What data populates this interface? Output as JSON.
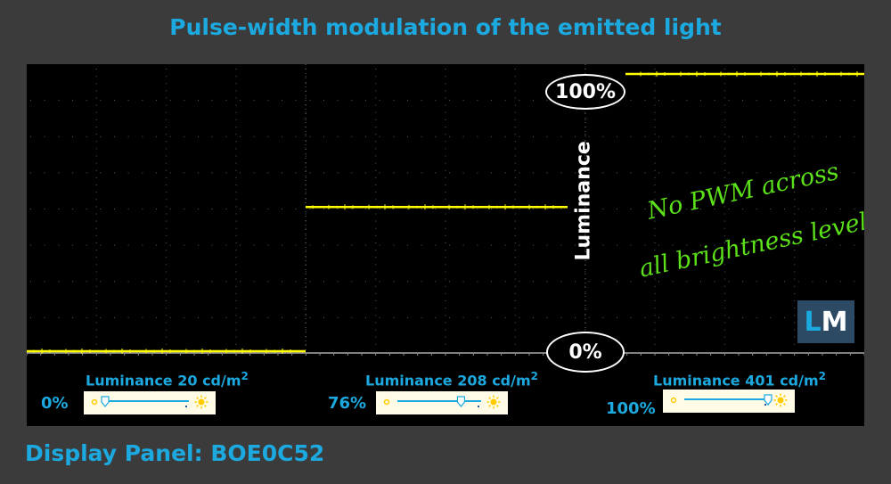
{
  "title": "Pulse-width modulation of the emitted light",
  "footer": "Display Panel: BOE0C52",
  "axis_label": "Luminance",
  "oval_top": "100%",
  "oval_bottom": "0%",
  "annotation_line1": "No PWM across",
  "annotation_line2": "all brightness levels",
  "logo": {
    "l": "L",
    "m": "M"
  },
  "colors": {
    "trace": "#ffff00",
    "accent": "#1ca9e0",
    "note": "#5be01a",
    "sun": "#ffcc00"
  },
  "panels": [
    {
      "luminance_label": "Luminance 20 cd/m",
      "unit_exp": "2",
      "brightness": "0%",
      "slider_fraction": 0.0
    },
    {
      "luminance_label": "Luminance 208 cd/m",
      "unit_exp": "2",
      "brightness": "76%",
      "slider_fraction": 0.76
    },
    {
      "luminance_label": "Luminance 401 cd/m",
      "unit_exp": "2",
      "brightness": "100%",
      "slider_fraction": 1.0
    }
  ],
  "chart_data": {
    "type": "line",
    "x_unit": "segment",
    "ylim": [
      0,
      100
    ],
    "series": [
      {
        "values": [
          0,
          0
        ]
      },
      {
        "values": [
          52,
          52
        ]
      },
      {
        "values": [
          100,
          100
        ]
      }
    ]
  }
}
